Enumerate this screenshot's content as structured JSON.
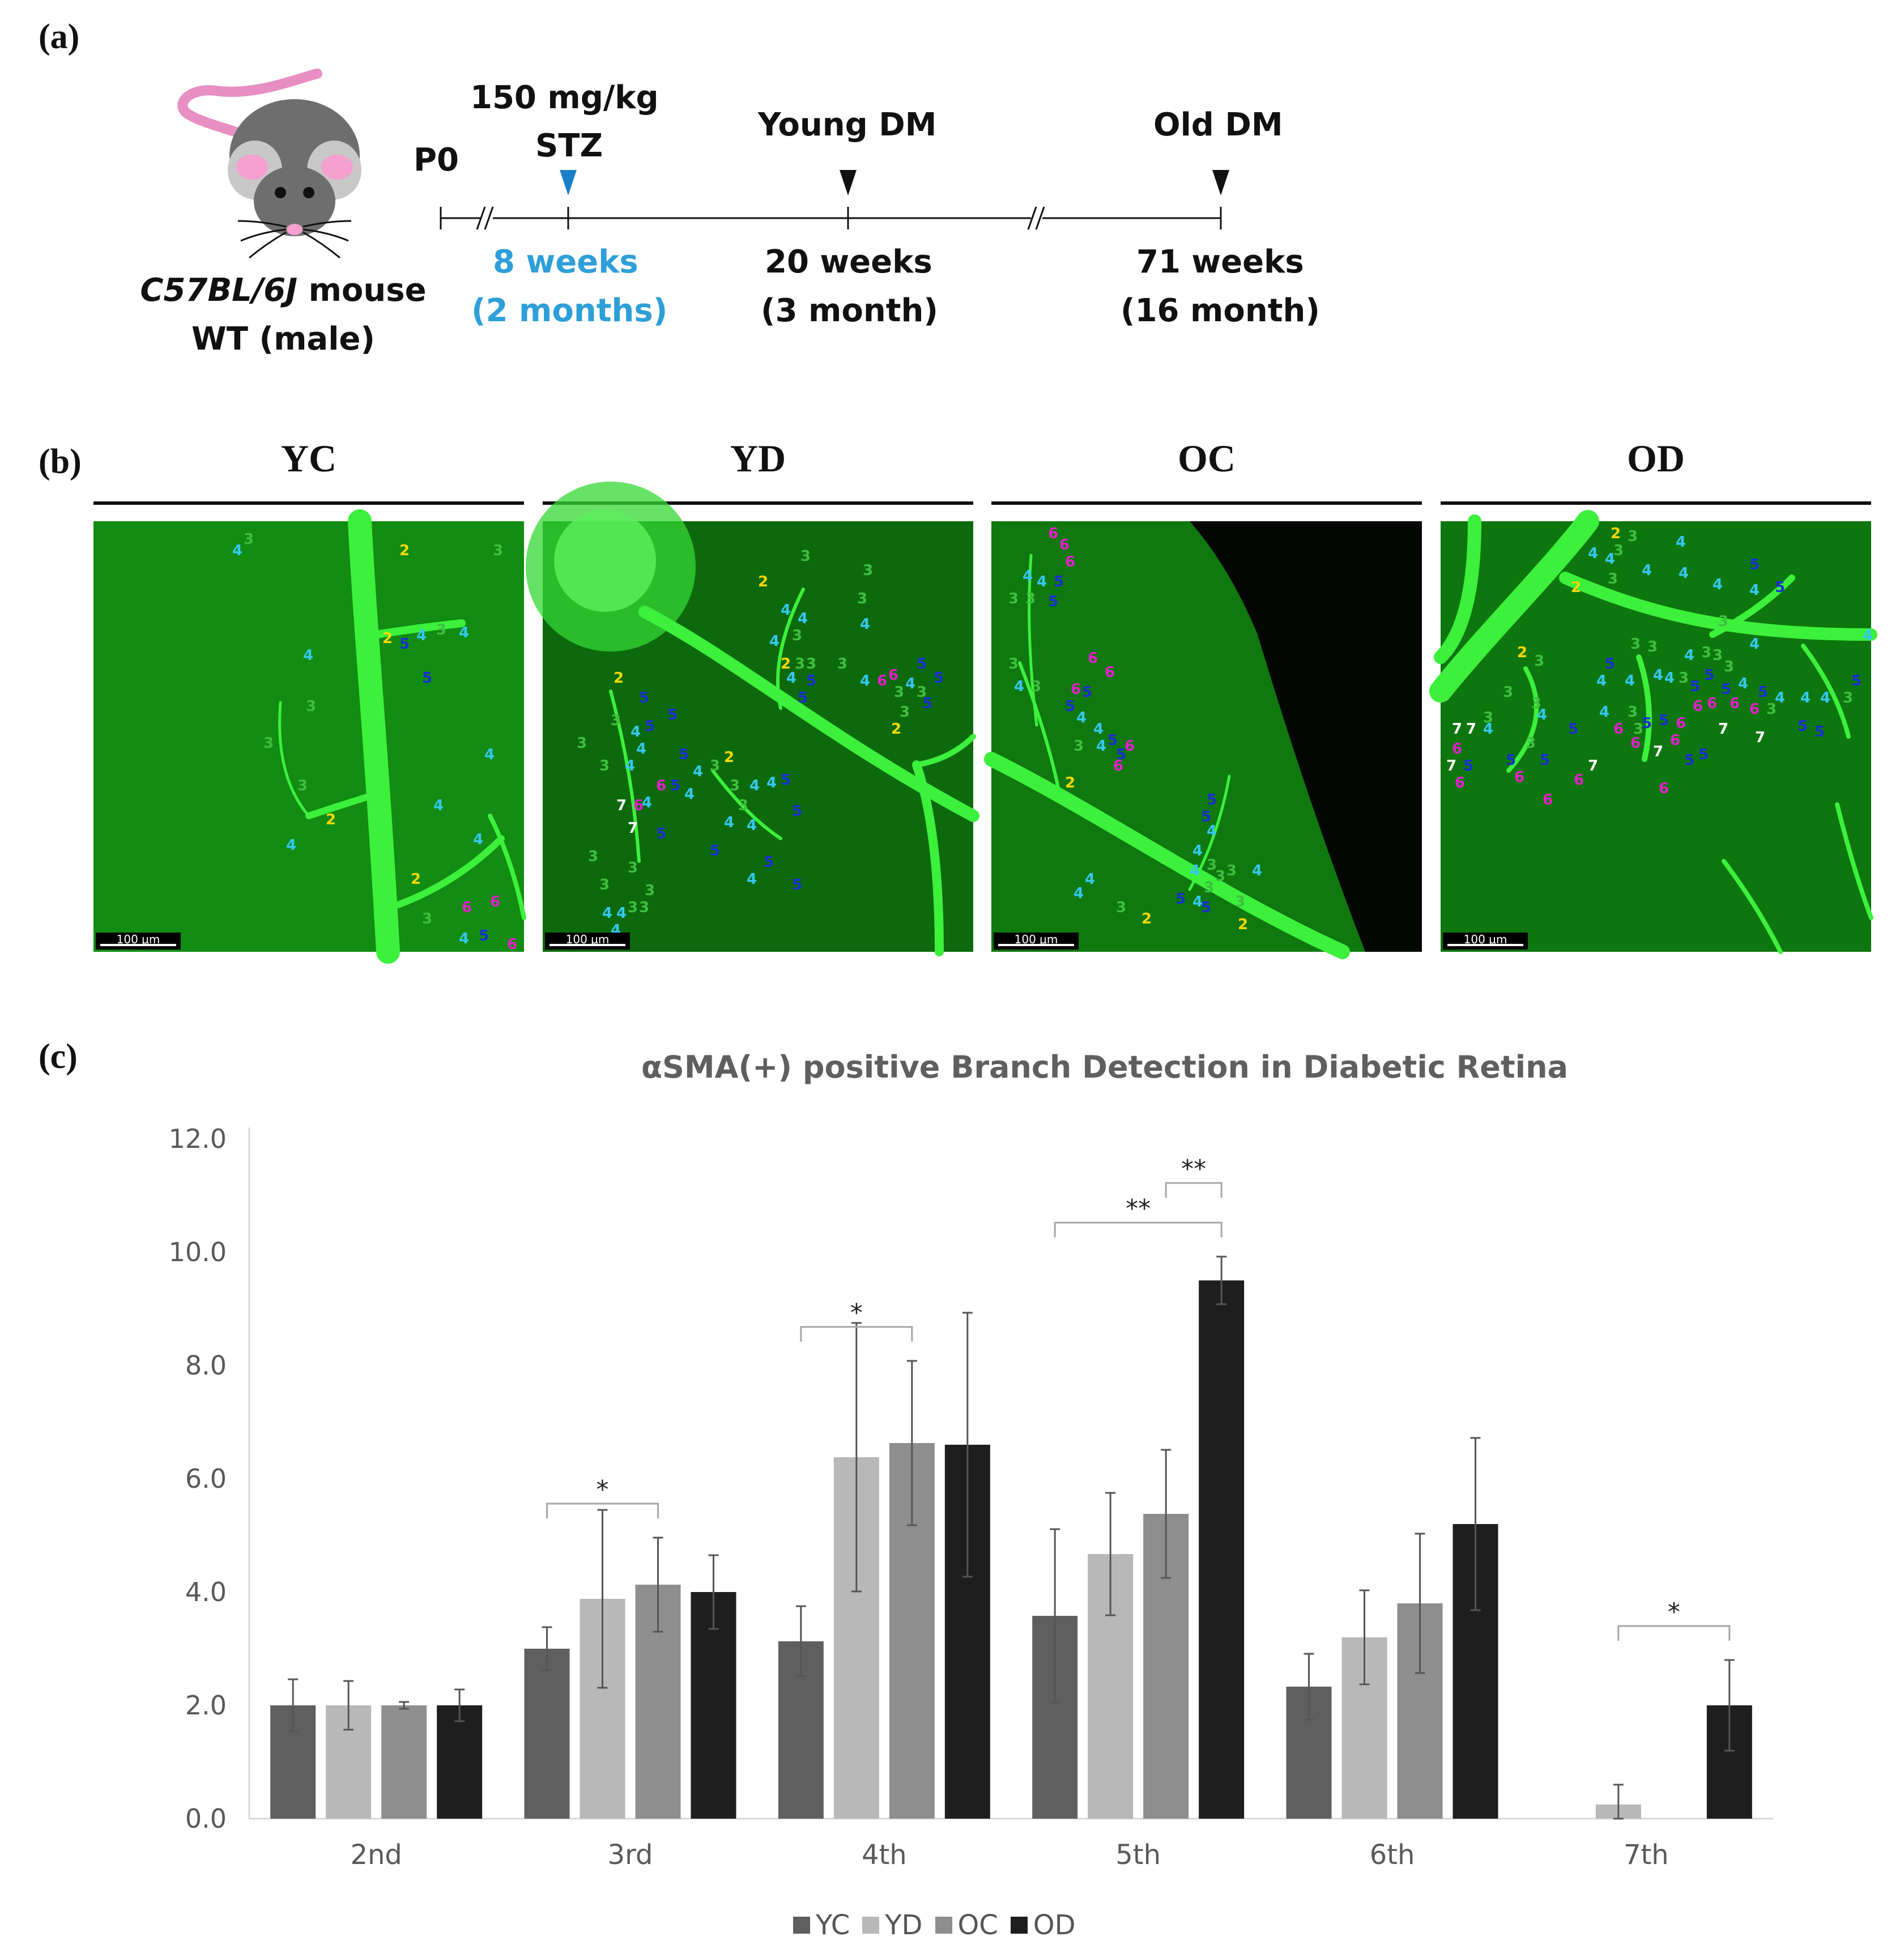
{
  "panels": {
    "a": "(a)",
    "b": "(b)",
    "c": "(c)"
  },
  "timeline": {
    "mouse_name_italic": "C57BL/6J",
    "mouse_name_rest": " mouse",
    "mouse_genotype": "WT (male)",
    "p0": "P0",
    "stz_dose": "150 mg/kg",
    "stz_label": "STZ",
    "young_dm": "Young DM",
    "old_dm": "Old DM",
    "t1_line1": "8 weeks",
    "t1_line2": "(2 months)",
    "t2_line1": "20 weeks",
    "t2_line2": "(3 month)",
    "t3_line1": "71 weeks",
    "t3_line2": "(16 month)",
    "colors": {
      "stz_marker": "#1a7fc9",
      "stz_text": "#2e9fd8",
      "marker": "#111111"
    }
  },
  "images": [
    {
      "group": "YC",
      "scale": "100 μm"
    },
    {
      "group": "YD",
      "scale": "100 μm"
    },
    {
      "group": "OC",
      "scale": "100 μm"
    },
    {
      "group": "OD",
      "scale": "100 μm"
    }
  ],
  "branch_colors": {
    "2": "#f5d800",
    "3": "#3fbf3f",
    "4": "#35c8f0",
    "5": "#1a2fd0",
    "6": "#e020c8",
    "7": "#ffffff"
  },
  "chart_data": {
    "type": "bar",
    "title": "αSMA(+) positive Branch Detection in Diabetic Retina",
    "categories": [
      "2nd",
      "3rd",
      "4th",
      "5th",
      "6th",
      "7th"
    ],
    "ylim": [
      0,
      12
    ],
    "yticks": [
      "0.0",
      "2.0",
      "4.0",
      "6.0",
      "8.0",
      "10.0",
      "12.0"
    ],
    "grid": false,
    "legend_position": "bottom",
    "series": [
      {
        "name": "YC",
        "color": "#5f5f5f",
        "values": [
          2.0,
          3.0,
          3.13,
          3.58,
          2.33,
          0
        ],
        "errors": [
          0.46,
          0.38,
          0.62,
          1.53,
          0.58,
          0
        ]
      },
      {
        "name": "YD",
        "color": "#b8b8b8",
        "values": [
          2.0,
          3.88,
          6.38,
          4.67,
          3.2,
          0.25
        ],
        "errors": [
          0.43,
          1.57,
          2.37,
          1.08,
          0.83,
          0.35
        ]
      },
      {
        "name": "OC",
        "color": "#8e8e8e",
        "values": [
          2.0,
          4.13,
          6.63,
          5.38,
          3.8,
          0
        ],
        "errors": [
          0.06,
          0.83,
          1.45,
          1.13,
          1.23,
          0
        ]
      },
      {
        "name": "OD",
        "color": "#1e1e1e",
        "values": [
          2.0,
          4.0,
          6.6,
          9.5,
          5.2,
          2.0
        ],
        "errors": [
          0.28,
          0.65,
          2.33,
          0.42,
          1.52,
          0.8
        ]
      }
    ],
    "significance": [
      {
        "category": 1,
        "from": 0,
        "to": 2,
        "label": "*"
      },
      {
        "category": 2,
        "from": 0,
        "to": 2,
        "label": "*"
      },
      {
        "category": 3,
        "from": 0,
        "to": 3,
        "label": "**"
      },
      {
        "category": 3,
        "from": 2,
        "to": 3,
        "label": "**"
      },
      {
        "category": 5,
        "from": 1,
        "to": 3,
        "label": "*"
      }
    ]
  }
}
